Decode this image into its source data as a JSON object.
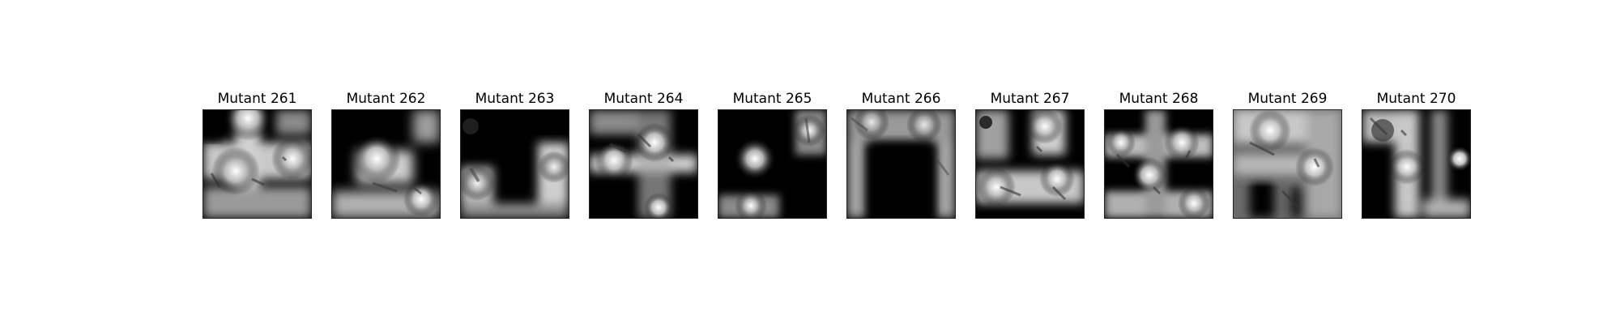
{
  "panels": [
    {
      "title": "Mutant 261"
    },
    {
      "title": "Mutant 262"
    },
    {
      "title": "Mutant 263"
    },
    {
      "title": "Mutant 264"
    },
    {
      "title": "Mutant 265"
    },
    {
      "title": "Mutant 266"
    },
    {
      "title": "Mutant 267"
    },
    {
      "title": "Mutant 268"
    },
    {
      "title": "Mutant 269"
    },
    {
      "title": "Mutant 270"
    }
  ]
}
